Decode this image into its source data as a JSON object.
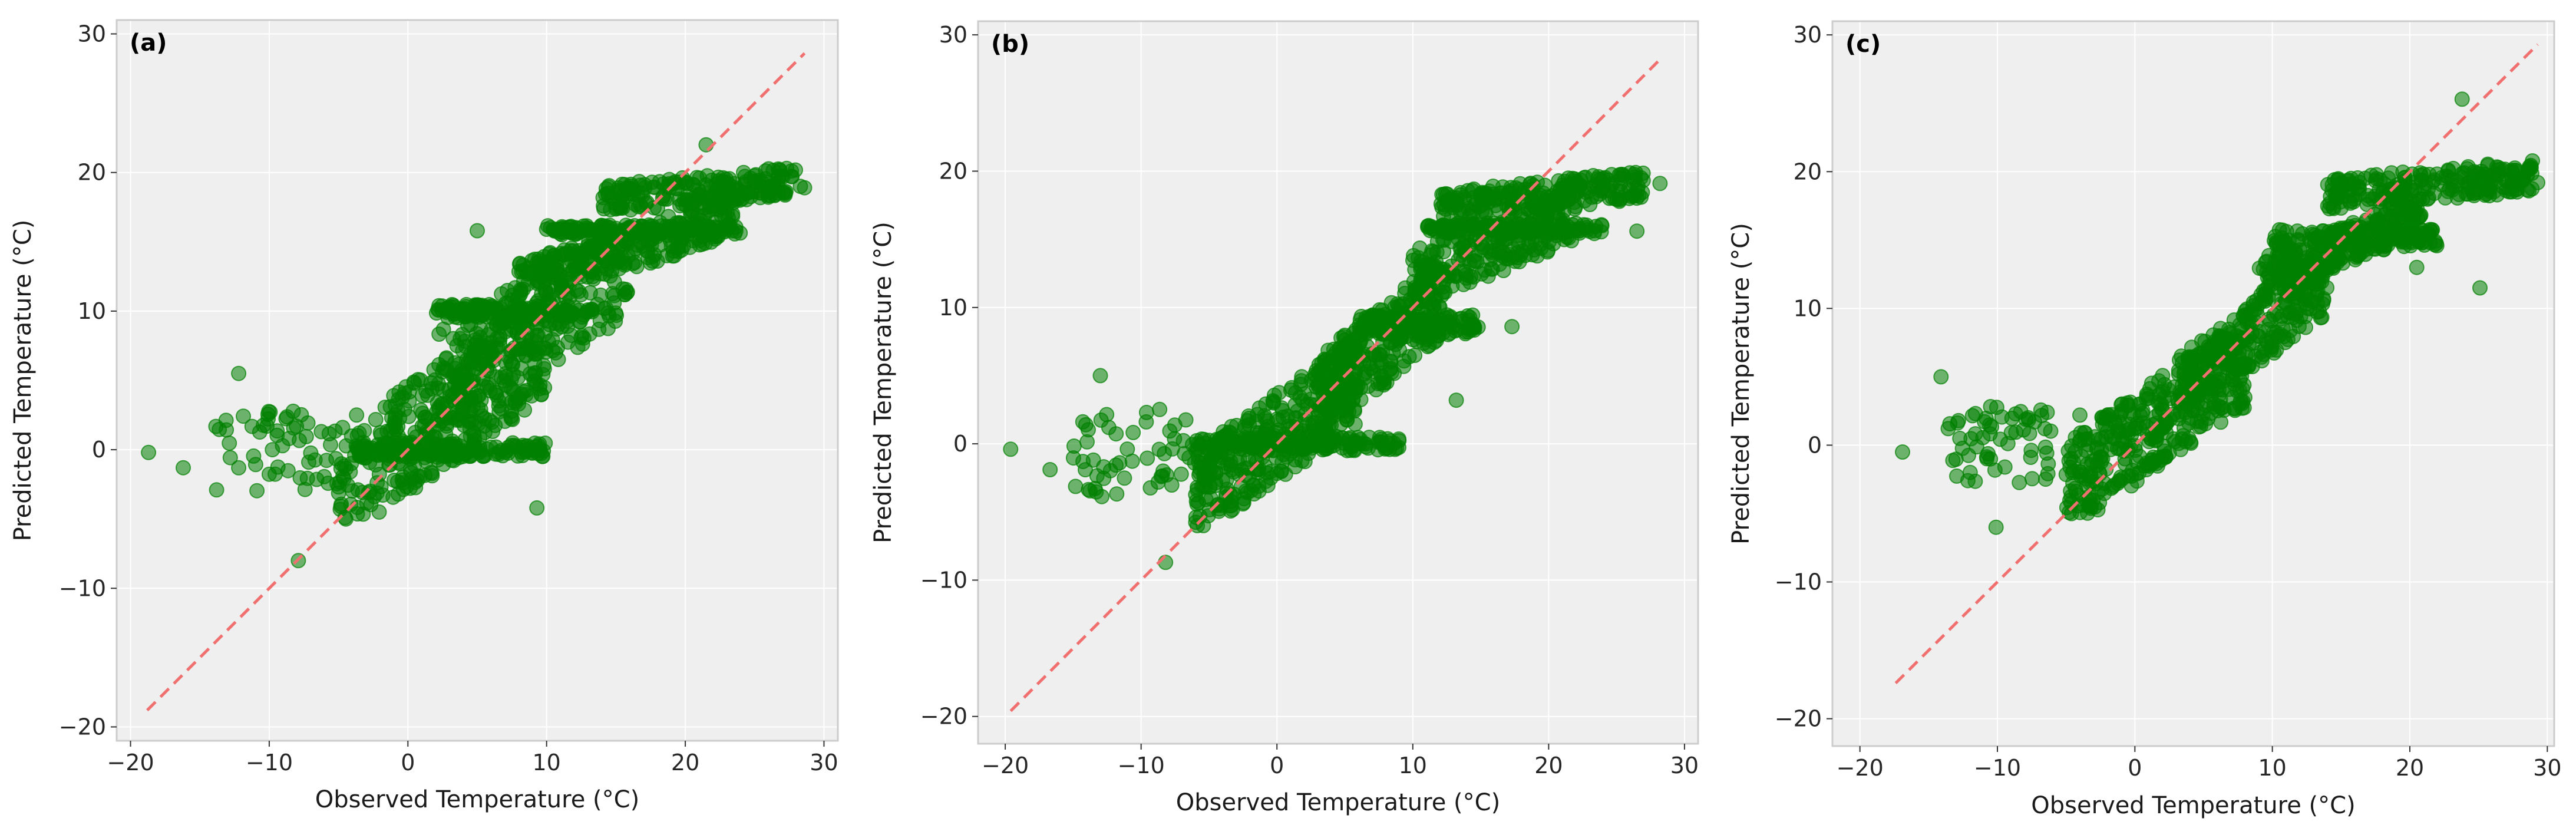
{
  "chart_data": [
    {
      "type": "scatter",
      "panel_label": "(a)",
      "xlabel": "Observed Temperature (°C)",
      "ylabel": "Predicted Temperature (°C)",
      "xlim": [
        -21,
        31
      ],
      "ylim": [
        -21,
        31
      ],
      "xticks": [
        -20,
        -10,
        0,
        10,
        20,
        30
      ],
      "yticks": [
        -20,
        -10,
        0,
        10,
        20,
        30
      ],
      "xtick_labels": [
        "−20",
        "−10",
        "0",
        "10",
        "20",
        "30"
      ],
      "ytick_labels": [
        "−20",
        "−10",
        "0",
        "10",
        "20",
        "30"
      ],
      "grid": true,
      "point_color": "#008000",
      "reference_line": {
        "style": "dashed",
        "color": "#f07070",
        "x": [
          -18.8,
          28.6
        ],
        "y": [
          -18.8,
          28.6
        ]
      },
      "outliers": [
        [
          -18.7,
          -0.2
        ],
        [
          -16.2,
          -1.3
        ],
        [
          -12.2,
          5.5
        ],
        [
          -7.9,
          -8.0
        ],
        [
          -3.7,
          2.5
        ],
        [
          5.0,
          15.8
        ],
        [
          9.3,
          -4.2
        ],
        [
          21.5,
          22.0
        ],
        [
          28.3,
          19.0
        ],
        [
          28.6,
          18.9
        ]
      ],
      "clusters": [
        {
          "x": [
            -14,
            -4
          ],
          "y": [
            -3,
            3
          ],
          "n": 60,
          "slope": 0
        },
        {
          "x": [
            -5,
            10
          ],
          "y": [
            -4,
            9
          ],
          "n": 360,
          "slope": 0.7
        },
        {
          "x": [
            -4,
            10
          ],
          "y": [
            -0.5,
            0.5
          ],
          "n": 160,
          "slope": 0
        },
        {
          "x": [
            2,
            16
          ],
          "y": [
            3,
            15
          ],
          "n": 240,
          "slope": 0.6
        },
        {
          "x": [
            2,
            14
          ],
          "y": [
            9.5,
            10.5
          ],
          "n": 120,
          "slope": 0
        },
        {
          "x": [
            8,
            24
          ],
          "y": [
            12,
            17
          ],
          "n": 260,
          "slope": 0.3
        },
        {
          "x": [
            10,
            23
          ],
          "y": [
            15.5,
            16.2
          ],
          "n": 120,
          "slope": 0
        },
        {
          "x": [
            14,
            28
          ],
          "y": [
            17,
            20.5
          ],
          "n": 200,
          "slope": 0.1
        }
      ]
    },
    {
      "type": "scatter",
      "panel_label": "(b)",
      "xlabel": "Observed Temperature (°C)",
      "ylabel": "Predicted Temperature (°C)",
      "xlim": [
        -22,
        31
      ],
      "ylim": [
        -22,
        31
      ],
      "xticks": [
        -20,
        -10,
        0,
        10,
        20,
        30
      ],
      "yticks": [
        -20,
        -10,
        0,
        10,
        20,
        30
      ],
      "xtick_labels": [
        "−20",
        "−10",
        "0",
        "10",
        "20",
        "30"
      ],
      "ytick_labels": [
        "−20",
        "−10",
        "0",
        "10",
        "20",
        "30"
      ],
      "grid": true,
      "point_color": "#008000",
      "reference_line": {
        "style": "dashed",
        "color": "#f07070",
        "x": [
          -19.6,
          28.3
        ],
        "y": [
          -19.6,
          28.3
        ]
      },
      "outliers": [
        [
          -19.6,
          -0.4
        ],
        [
          -16.7,
          -1.9
        ],
        [
          -13.0,
          5.0
        ],
        [
          -8.2,
          -8.7
        ],
        [
          -9.6,
          2.3
        ],
        [
          13.2,
          3.2
        ],
        [
          17.3,
          8.6
        ],
        [
          28.2,
          19.1
        ],
        [
          26.5,
          15.6
        ]
      ],
      "clusters": [
        {
          "x": [
            -15,
            -5
          ],
          "y": [
            -4,
            3
          ],
          "n": 60,
          "slope": 0
        },
        {
          "x": [
            -6,
            6
          ],
          "y": [
            -5,
            6
          ],
          "n": 340,
          "slope": 0.7
        },
        {
          "x": [
            -6,
            9
          ],
          "y": [
            -0.5,
            0.5
          ],
          "n": 160,
          "slope": 0
        },
        {
          "x": [
            3,
            12
          ],
          "y": [
            2,
            12
          ],
          "n": 240,
          "slope": 0.8
        },
        {
          "x": [
            6,
            15
          ],
          "y": [
            8,
            9.5
          ],
          "n": 140,
          "slope": 0
        },
        {
          "x": [
            10,
            22
          ],
          "y": [
            11,
            18
          ],
          "n": 240,
          "slope": 0.4
        },
        {
          "x": [
            11,
            24
          ],
          "y": [
            15.4,
            16.2
          ],
          "n": 120,
          "slope": 0
        },
        {
          "x": [
            12,
            27
          ],
          "y": [
            16.5,
            20
          ],
          "n": 220,
          "slope": 0.1
        }
      ]
    },
    {
      "type": "scatter",
      "panel_label": "(c)",
      "xlabel": "Observed Temperature (°C)",
      "ylabel": "Predicted Temperature (°C)",
      "xlim": [
        -22,
        30.5
      ],
      "ylim": [
        -22,
        31
      ],
      "xticks": [
        -20,
        -10,
        0,
        10,
        20,
        30
      ],
      "yticks": [
        -20,
        -10,
        0,
        10,
        20,
        30
      ],
      "xtick_labels": [
        "−20",
        "−10",
        "0",
        "10",
        "20",
        "30"
      ],
      "ytick_labels": [
        "−20",
        "−10",
        "0",
        "10",
        "20",
        "30"
      ],
      "grid": true,
      "point_color": "#008000",
      "reference_line": {
        "style": "dashed",
        "color": "#f07070",
        "x": [
          -17.4,
          29.3
        ],
        "y": [
          -17.4,
          29.3
        ]
      },
      "outliers": [
        [
          -16.9,
          -0.5
        ],
        [
          -14.1,
          5.0
        ],
        [
          -10.1,
          -6.0
        ],
        [
          -4.0,
          2.2
        ],
        [
          23.8,
          25.3
        ],
        [
          29.3,
          19.2
        ],
        [
          25.1,
          11.5
        ],
        [
          20.5,
          13.0
        ]
      ],
      "clusters": [
        {
          "x": [
            -14,
            -6
          ],
          "y": [
            -3,
            3
          ],
          "n": 60,
          "slope": 0
        },
        {
          "x": [
            -5,
            8
          ],
          "y": [
            -4,
            7
          ],
          "n": 360,
          "slope": 0.7
        },
        {
          "x": [
            3,
            14
          ],
          "y": [
            4,
            12
          ],
          "n": 260,
          "slope": 0.7
        },
        {
          "x": [
            9,
            21
          ],
          "y": [
            12,
            17
          ],
          "n": 260,
          "slope": 0.4
        },
        {
          "x": [
            10,
            22
          ],
          "y": [
            14.5,
            15.8
          ],
          "n": 120,
          "slope": 0
        },
        {
          "x": [
            14,
            29
          ],
          "y": [
            17,
            21
          ],
          "n": 220,
          "slope": 0.1
        }
      ]
    }
  ],
  "colors": {
    "points": "#008000",
    "reference": "#f07070",
    "plot_background": "#efefef",
    "grid": "#ffffff",
    "frame": "#cccccc"
  }
}
